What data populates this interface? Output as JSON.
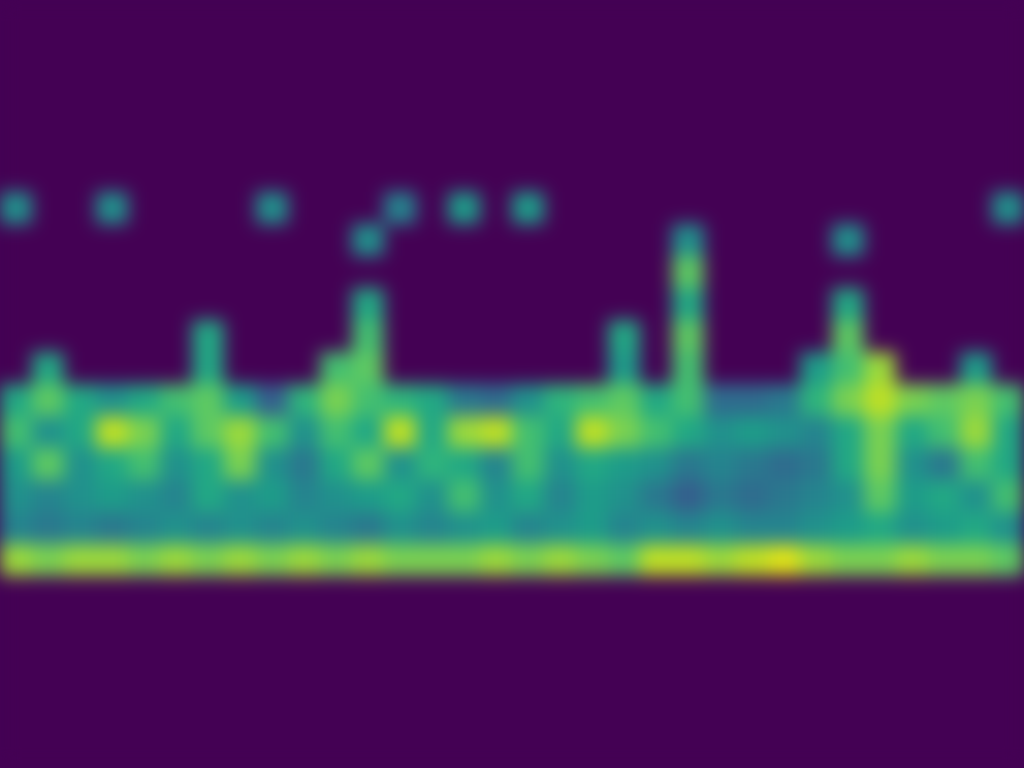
{
  "chart_data": {
    "type": "heatmap",
    "tick_labels": false,
    "grid": false,
    "color_range": [
      0,
      1
    ],
    "cells": [
      [
        0,
        0,
        0,
        0,
        0,
        0,
        0,
        0,
        0,
        0,
        0,
        0,
        0,
        0,
        0,
        0,
        0,
        0,
        0,
        0,
        0,
        0,
        0,
        0,
        0,
        0,
        0,
        0,
        0,
        0,
        0,
        0
      ],
      [
        0,
        0,
        0,
        0,
        0,
        0,
        0,
        0,
        0,
        0,
        0,
        0,
        0,
        0,
        0,
        0,
        0,
        0,
        0,
        0,
        0,
        0,
        0,
        0,
        0,
        0,
        0,
        0,
        0,
        0,
        0,
        0
      ],
      [
        0,
        0,
        0,
        0,
        0,
        0,
        0,
        0,
        0,
        0,
        0,
        0,
        0,
        0,
        0,
        0,
        0,
        0,
        0,
        0,
        0,
        0,
        0,
        0,
        0,
        0,
        0,
        0,
        0,
        0,
        0,
        0
      ],
      [
        0,
        0,
        0,
        0,
        0,
        0,
        0,
        0,
        0,
        0,
        0,
        0,
        0,
        0,
        0,
        0,
        0,
        0,
        0,
        0,
        0,
        0,
        0,
        0,
        0,
        0,
        0,
        0,
        0,
        0,
        0,
        0
      ],
      [
        0,
        0,
        0,
        0,
        0,
        0,
        0,
        0,
        0,
        0,
        0,
        0,
        0,
        0,
        0,
        0,
        0,
        0,
        0,
        0,
        0,
        0,
        0,
        0,
        0,
        0,
        0,
        0,
        0,
        0,
        0,
        0
      ],
      [
        0,
        0,
        0,
        0,
        0,
        0,
        0,
        0,
        0,
        0,
        0,
        0,
        0,
        0,
        0,
        0,
        0,
        0,
        0,
        0,
        0,
        0,
        0,
        0,
        0,
        0,
        0,
        0,
        0,
        0,
        0,
        0
      ],
      [
        0.5,
        0,
        0,
        0.5,
        0,
        0,
        0,
        0,
        0.5,
        0,
        0,
        0,
        0.45,
        0,
        0.55,
        0,
        0.55,
        0,
        0,
        0,
        0,
        0,
        0,
        0,
        0,
        0,
        0,
        0,
        0,
        0,
        0,
        0.5
      ],
      [
        0,
        0,
        0,
        0,
        0,
        0,
        0,
        0,
        0,
        0,
        0,
        0.5,
        0,
        0,
        0,
        0,
        0,
        0,
        0,
        0,
        0,
        0.5,
        0,
        0,
        0,
        0,
        0.5,
        0,
        0,
        0,
        0,
        0
      ],
      [
        0,
        0,
        0,
        0,
        0,
        0,
        0,
        0,
        0,
        0,
        0,
        0,
        0,
        0,
        0,
        0,
        0,
        0,
        0,
        0,
        0,
        0.75,
        0,
        0,
        0,
        0,
        0,
        0,
        0,
        0,
        0,
        0
      ],
      [
        0,
        0,
        0,
        0,
        0,
        0,
        0,
        0,
        0,
        0,
        0,
        0.6,
        0,
        0,
        0,
        0,
        0,
        0,
        0,
        0,
        0,
        0.6,
        0,
        0,
        0,
        0,
        0.6,
        0,
        0,
        0,
        0,
        0
      ],
      [
        0,
        0,
        0,
        0,
        0,
        0,
        0.6,
        0,
        0,
        0,
        0,
        0.7,
        0,
        0,
        0,
        0,
        0,
        0,
        0,
        0.6,
        0,
        0.75,
        0,
        0,
        0,
        0,
        0.75,
        0,
        0,
        0,
        0,
        0
      ],
      [
        0,
        0.6,
        0,
        0,
        0,
        0,
        0.6,
        0,
        0,
        0,
        0.7,
        0.75,
        0,
        0,
        0,
        0,
        0,
        0,
        0,
        0.55,
        0,
        0.7,
        0,
        0,
        0,
        0.55,
        0.7,
        0.85,
        0,
        0,
        0.55,
        0
      ],
      [
        0.6,
        0.75,
        0.6,
        0.5,
        0.6,
        0.7,
        0.75,
        0.55,
        0.3,
        0.65,
        0.8,
        0.7,
        0.65,
        0.6,
        0.4,
        0.35,
        0.5,
        0.65,
        0.7,
        0.75,
        0.6,
        0.7,
        0.35,
        0.35,
        0.4,
        0.65,
        0.8,
        0.9,
        0.8,
        0.75,
        0.8,
        0.7
      ],
      [
        0.7,
        0.5,
        0.6,
        0.9,
        0.8,
        0.6,
        0.75,
        0.85,
        0.7,
        0.5,
        0.7,
        0.6,
        0.9,
        0.6,
        0.85,
        0.9,
        0.7,
        0.6,
        0.9,
        0.8,
        0.7,
        0.6,
        0.5,
        0.55,
        0.5,
        0.45,
        0.6,
        0.8,
        0.6,
        0.7,
        0.85,
        0.6
      ],
      [
        0.55,
        0.75,
        0.5,
        0.6,
        0.7,
        0.5,
        0.6,
        0.8,
        0.5,
        0.4,
        0.6,
        0.75,
        0.5,
        0.65,
        0.6,
        0.45,
        0.7,
        0.5,
        0.6,
        0.55,
        0.5,
        0.4,
        0.45,
        0.4,
        0.35,
        0.4,
        0.6,
        0.8,
        0.5,
        0.4,
        0.7,
        0.6
      ],
      [
        0.5,
        0.45,
        0.5,
        0.55,
        0.5,
        0.45,
        0.6,
        0.5,
        0.55,
        0.45,
        0.5,
        0.55,
        0.6,
        0.5,
        0.7,
        0.5,
        0.6,
        0.45,
        0.55,
        0.5,
        0.4,
        0.3,
        0.4,
        0.35,
        0.4,
        0.45,
        0.5,
        0.75,
        0.55,
        0.6,
        0.5,
        0.7
      ],
      [
        0.45,
        0.4,
        0.45,
        0.4,
        0.45,
        0.5,
        0.45,
        0.5,
        0.45,
        0.5,
        0.45,
        0.4,
        0.5,
        0.45,
        0.5,
        0.55,
        0.45,
        0.5,
        0.55,
        0.45,
        0.5,
        0.45,
        0.5,
        0.45,
        0.45,
        0.5,
        0.55,
        0.6,
        0.5,
        0.55,
        0.6,
        0.5
      ],
      [
        0.85,
        0.8,
        0.85,
        0.85,
        0.8,
        0.85,
        0.8,
        0.85,
        0.8,
        0.85,
        0.8,
        0.85,
        0.8,
        0.8,
        0.8,
        0.85,
        0.8,
        0.85,
        0.8,
        0.75,
        0.9,
        0.9,
        0.85,
        0.9,
        0.95,
        0.85,
        0.8,
        0.8,
        0.85,
        0.8,
        0.8,
        0.75
      ],
      [
        0,
        0,
        0,
        0,
        0,
        0,
        0,
        0,
        0,
        0,
        0,
        0,
        0,
        0,
        0,
        0,
        0,
        0,
        0,
        0,
        0,
        0,
        0,
        0,
        0,
        0,
        0,
        0,
        0,
        0,
        0,
        0
      ],
      [
        0,
        0,
        0,
        0,
        0,
        0,
        0,
        0,
        0,
        0,
        0,
        0,
        0,
        0,
        0,
        0,
        0,
        0,
        0,
        0,
        0,
        0,
        0,
        0,
        0,
        0,
        0,
        0,
        0,
        0,
        0,
        0
      ],
      [
        0,
        0,
        0,
        0,
        0,
        0,
        0,
        0,
        0,
        0,
        0,
        0,
        0,
        0,
        0,
        0,
        0,
        0,
        0,
        0,
        0,
        0,
        0,
        0,
        0,
        0,
        0,
        0,
        0,
        0,
        0,
        0
      ],
      [
        0,
        0,
        0,
        0,
        0,
        0,
        0,
        0,
        0,
        0,
        0,
        0,
        0,
        0,
        0,
        0,
        0,
        0,
        0,
        0,
        0,
        0,
        0,
        0,
        0,
        0,
        0,
        0,
        0,
        0,
        0,
        0
      ],
      [
        0,
        0,
        0,
        0,
        0,
        0,
        0,
        0,
        0,
        0,
        0,
        0,
        0,
        0,
        0,
        0,
        0,
        0,
        0,
        0,
        0,
        0,
        0,
        0,
        0,
        0,
        0,
        0,
        0,
        0,
        0,
        0
      ],
      [
        0,
        0,
        0,
        0,
        0,
        0,
        0,
        0,
        0,
        0,
        0,
        0,
        0,
        0,
        0,
        0,
        0,
        0,
        0,
        0,
        0,
        0,
        0,
        0,
        0,
        0,
        0,
        0,
        0,
        0,
        0,
        0
      ]
    ]
  }
}
